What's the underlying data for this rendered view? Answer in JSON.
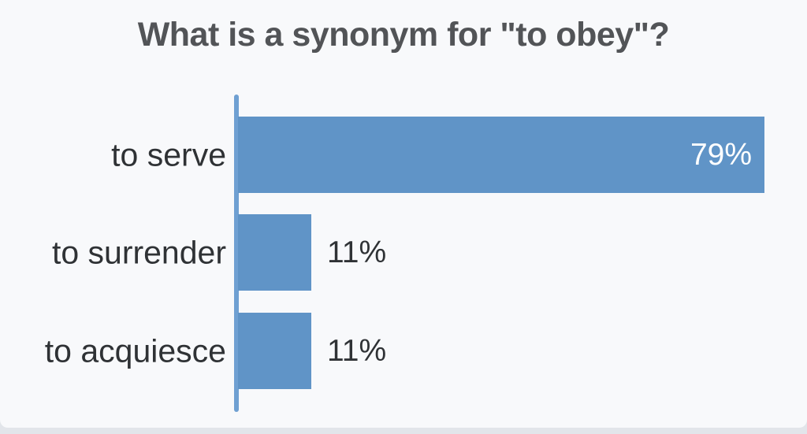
{
  "page": {
    "background_color": "#e2e5ea",
    "card_color": "#f8f9fb"
  },
  "chart_data": {
    "type": "bar",
    "orientation": "horizontal",
    "title": "What is a synonym for \"to obey\"?",
    "categories": [
      "to serve",
      "to surrender",
      "to acquiesce"
    ],
    "values": [
      79,
      11,
      11
    ],
    "value_labels": [
      "79%",
      "11%",
      "11%"
    ],
    "value_label_positions": [
      "inside",
      "outside",
      "outside"
    ],
    "xlabel": "",
    "ylabel": "",
    "xlim": [
      0,
      100
    ],
    "grid": false,
    "legend": false,
    "bar_color": "#6094c7",
    "axis_color": "#6fa0d2",
    "title_color": "#525457",
    "label_color": "#2f3235",
    "value_label_inside_color": "#ffffff"
  }
}
